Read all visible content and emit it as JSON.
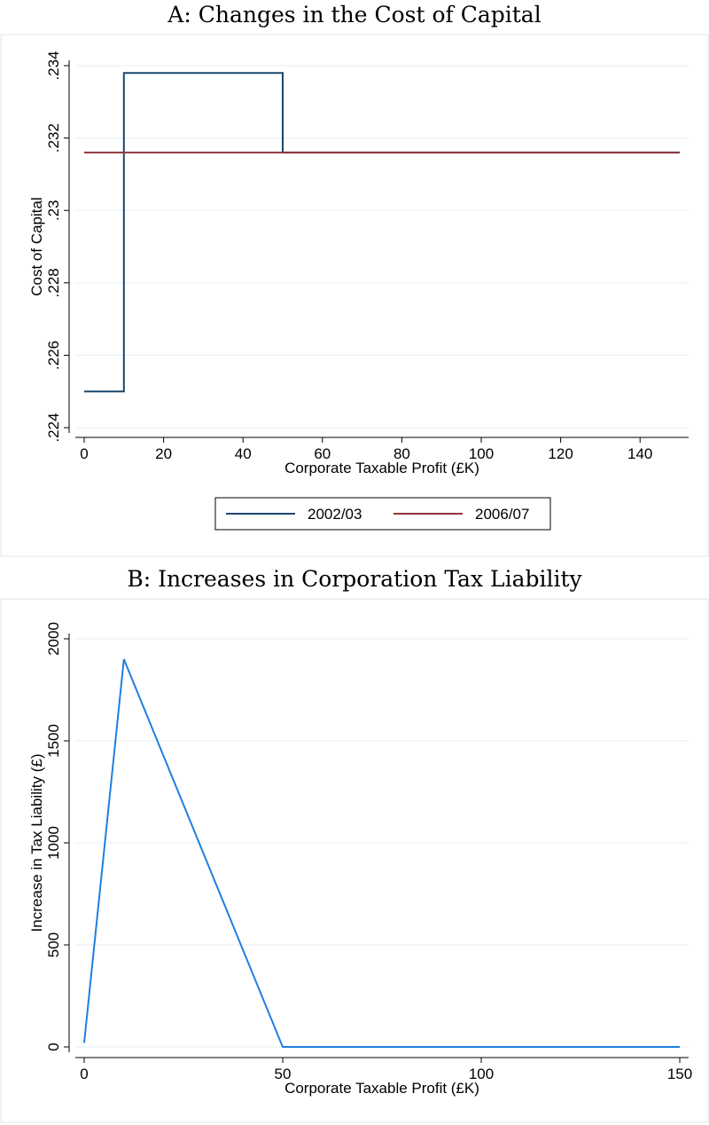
{
  "chart_data": [
    {
      "type": "line",
      "title": "A: Changes in the Cost of Capital",
      "xlabel": "Corporate Taxable Profit (£K)",
      "ylabel": "Cost of Capital",
      "xlim": [
        0,
        150
      ],
      "ylim": [
        0.224,
        0.234
      ],
      "xticks": [
        0,
        20,
        40,
        60,
        80,
        100,
        120,
        140
      ],
      "xtick_labels": [
        "0",
        "20",
        "40",
        "60",
        "80",
        "100",
        "120",
        "140"
      ],
      "yticks": [
        0.224,
        0.226,
        0.228,
        0.23,
        0.232,
        0.234
      ],
      "ytick_labels": [
        ".224",
        ".226",
        ".228",
        ".23",
        ".232",
        ".234"
      ],
      "grid": true,
      "legend_position": "bottom",
      "series": [
        {
          "name": "2002/03",
          "color": "#1a476f",
          "x": [
            0,
            10,
            10,
            50,
            50,
            150
          ],
          "y": [
            0.225,
            0.225,
            0.2338,
            0.2338,
            0.2316,
            0.2316
          ]
        },
        {
          "name": "2006/07",
          "color": "#90353b",
          "x": [
            0,
            150
          ],
          "y": [
            0.2316,
            0.2316
          ]
        }
      ]
    },
    {
      "type": "line",
      "title": "B: Increases in Corporation Tax Liability",
      "xlabel": "Corporate Taxable Profit (£K)",
      "ylabel": "Increase in Tax Liability (£)",
      "xlim": [
        0,
        150
      ],
      "ylim": [
        0,
        2000
      ],
      "xticks": [
        0,
        50,
        100,
        150
      ],
      "xtick_labels": [
        "0",
        "50",
        "100",
        "150"
      ],
      "yticks": [
        0,
        500,
        1000,
        1500,
        2000
      ],
      "ytick_labels": [
        "0",
        "500",
        "1000",
        "1500",
        "2000"
      ],
      "grid": true,
      "series": [
        {
          "color": "#1e7fe0",
          "x": [
            0,
            10,
            50,
            150
          ],
          "y": [
            20,
            1900,
            0,
            0
          ]
        }
      ]
    }
  ]
}
